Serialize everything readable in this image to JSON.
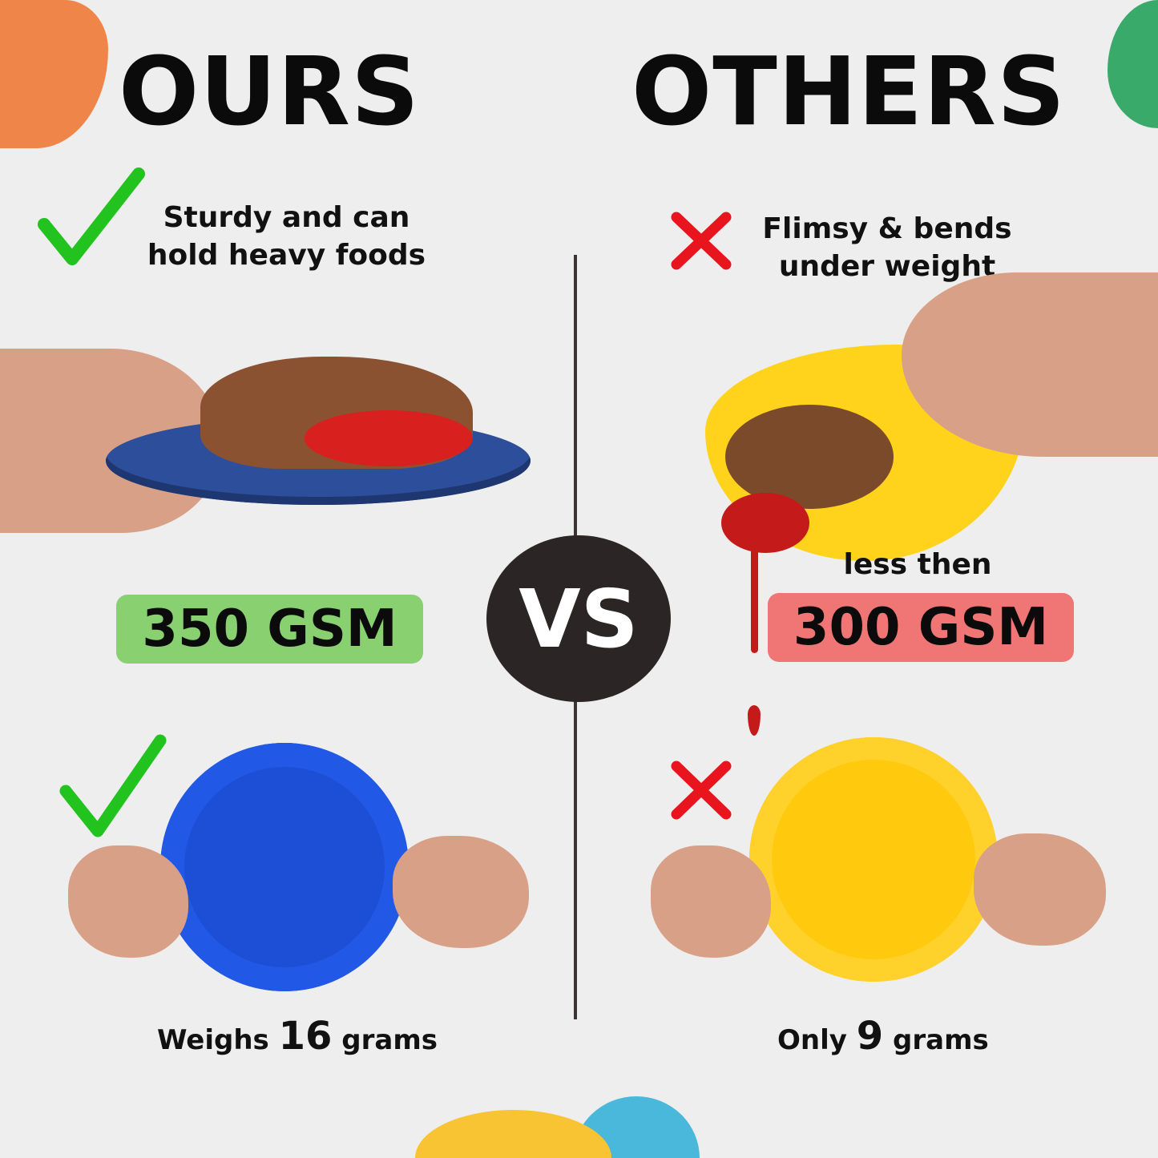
{
  "colors": {
    "background": "#eeeeee",
    "orange_accent": "#f0854a",
    "green_accent": "#3aaa6a",
    "yellow_accent": "#f8c434",
    "blue_accent": "#4ab8da",
    "check_green": "#22c31e",
    "cross_red": "#e8141e",
    "ours_badge": "#88d070",
    "others_badge": "#f07575",
    "vs_circle": "#2b2526",
    "ours_plate": "#1d4fd6",
    "others_plate": "#ffc90e"
  },
  "ours": {
    "title": "OURS",
    "claim_line1": "Sturdy and can",
    "claim_line2": "hold heavy foods",
    "gsm": "350 GSM",
    "weight_prefix": "Weighs",
    "weight_value": "16",
    "weight_suffix": "grams",
    "icon": "check-icon"
  },
  "others": {
    "title": "OTHERS",
    "claim_line1": "Flimsy & bends",
    "claim_line2": "under weight",
    "gsm_prefix": "less then",
    "gsm": "300 GSM",
    "weight_prefix": "Only",
    "weight_value": "9",
    "weight_suffix": "grams",
    "icon": "cross-icon"
  },
  "vs_label": "VS"
}
